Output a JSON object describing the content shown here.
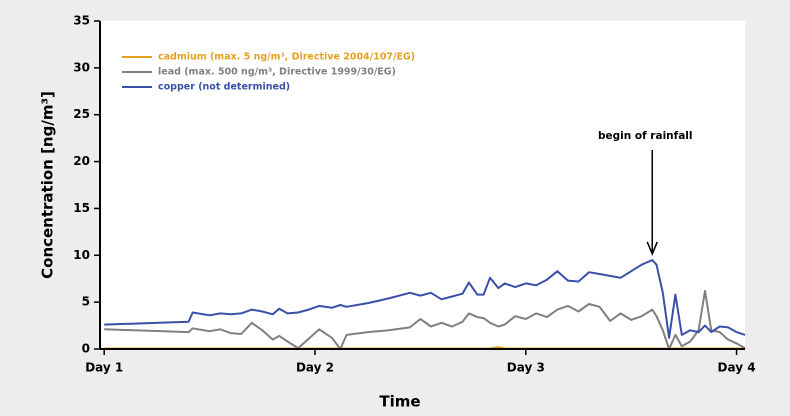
{
  "chart_data": {
    "type": "line",
    "xlabel": "Time",
    "ylabel": "Concentration [ng/m³]",
    "x": [
      1.0,
      1.4,
      1.42,
      1.5,
      1.55,
      1.6,
      1.65,
      1.7,
      1.75,
      1.8,
      1.83,
      1.87,
      1.92,
      1.97,
      2.02,
      2.08,
      2.12,
      2.15,
      2.25,
      2.35,
      2.45,
      2.5,
      2.55,
      2.6,
      2.65,
      2.7,
      2.73,
      2.77,
      2.8,
      2.83,
      2.87,
      2.9,
      2.95,
      3.0,
      3.05,
      3.1,
      3.15,
      3.2,
      3.25,
      3.3,
      3.35,
      3.4,
      3.45,
      3.5,
      3.55,
      3.6,
      3.62,
      3.65,
      3.68,
      3.71,
      3.74,
      3.78,
      3.82,
      3.85,
      3.88,
      3.92,
      3.96,
      4.0,
      4.04
    ],
    "series": [
      {
        "name": "cadmium (max. 5 ng/m³, Directive 2004/107/EG)",
        "color": "#e8a020",
        "values": [
          0.05,
          0.05,
          0.05,
          0.05,
          0.05,
          0.05,
          0.05,
          0.05,
          0.05,
          0.05,
          0.05,
          0.05,
          0.05,
          0.05,
          0.05,
          0.05,
          0.05,
          0.05,
          0.05,
          0.05,
          0.05,
          0.05,
          0.05,
          0.05,
          0.05,
          0.05,
          0.05,
          0.05,
          0.05,
          0.05,
          0.2,
          0.05,
          0.05,
          0.05,
          0.05,
          0.05,
          0.05,
          0.05,
          0.05,
          0.05,
          0.05,
          0.05,
          0.05,
          0.05,
          0.05,
          0.05,
          0.05,
          0.05,
          0.05,
          0.05,
          0.05,
          0.05,
          0.05,
          0.05,
          0.05,
          0.05,
          0.05,
          0.05,
          0.05
        ]
      },
      {
        "name": "lead (max. 500 ng/m³, Directive 1999/30/EG)",
        "color": "#808080",
        "values": [
          2.1,
          1.8,
          2.2,
          1.9,
          2.1,
          1.7,
          1.6,
          2.8,
          2.0,
          1.0,
          1.4,
          0.8,
          0.1,
          1.1,
          2.1,
          1.2,
          0.0,
          1.5,
          1.8,
          2.0,
          2.3,
          3.2,
          2.4,
          2.8,
          2.4,
          2.9,
          3.8,
          3.4,
          3.3,
          2.8,
          2.4,
          2.6,
          3.5,
          3.2,
          3.8,
          3.4,
          4.2,
          4.6,
          4.0,
          4.8,
          4.5,
          3.0,
          3.8,
          3.1,
          3.5,
          4.2,
          3.5,
          2.0,
          0.0,
          1.5,
          0.3,
          0.8,
          2.0,
          6.2,
          2.0,
          1.8,
          1.0,
          0.6,
          0.1
        ]
      },
      {
        "name": "copper (not determined)",
        "color": "#3a50a8",
        "values": [
          2.6,
          2.9,
          3.9,
          3.6,
          3.8,
          3.7,
          3.8,
          4.2,
          4.0,
          3.7,
          4.3,
          3.8,
          3.9,
          4.2,
          4.6,
          4.4,
          4.7,
          4.5,
          4.9,
          5.4,
          6.0,
          5.7,
          6.0,
          5.3,
          5.6,
          5.9,
          7.1,
          5.8,
          5.8,
          7.6,
          6.5,
          7.0,
          6.6,
          7.0,
          6.8,
          7.4,
          8.3,
          7.3,
          7.2,
          8.2,
          8.0,
          7.8,
          7.6,
          8.3,
          9.0,
          9.5,
          9.0,
          6.0,
          1.2,
          5.8,
          1.5,
          2.0,
          1.8,
          2.5,
          1.8,
          2.4,
          2.3,
          1.8,
          1.5
        ]
      }
    ],
    "xlim": [
      0.98,
      4.04
    ],
    "xticks": [
      {
        "value": 1,
        "label": "Day 1"
      },
      {
        "value": 2,
        "label": "Day 2"
      },
      {
        "value": 3,
        "label": "Day 3"
      },
      {
        "value": 4,
        "label": "Day 4"
      }
    ],
    "ylim": [
      0,
      35
    ],
    "yticks": [
      0,
      5,
      10,
      15,
      20,
      25,
      30,
      35
    ],
    "legend": "upper left",
    "annotations": [
      {
        "text": "begin of rainfall",
        "x": 3.6,
        "y": 9.5
      }
    ]
  }
}
